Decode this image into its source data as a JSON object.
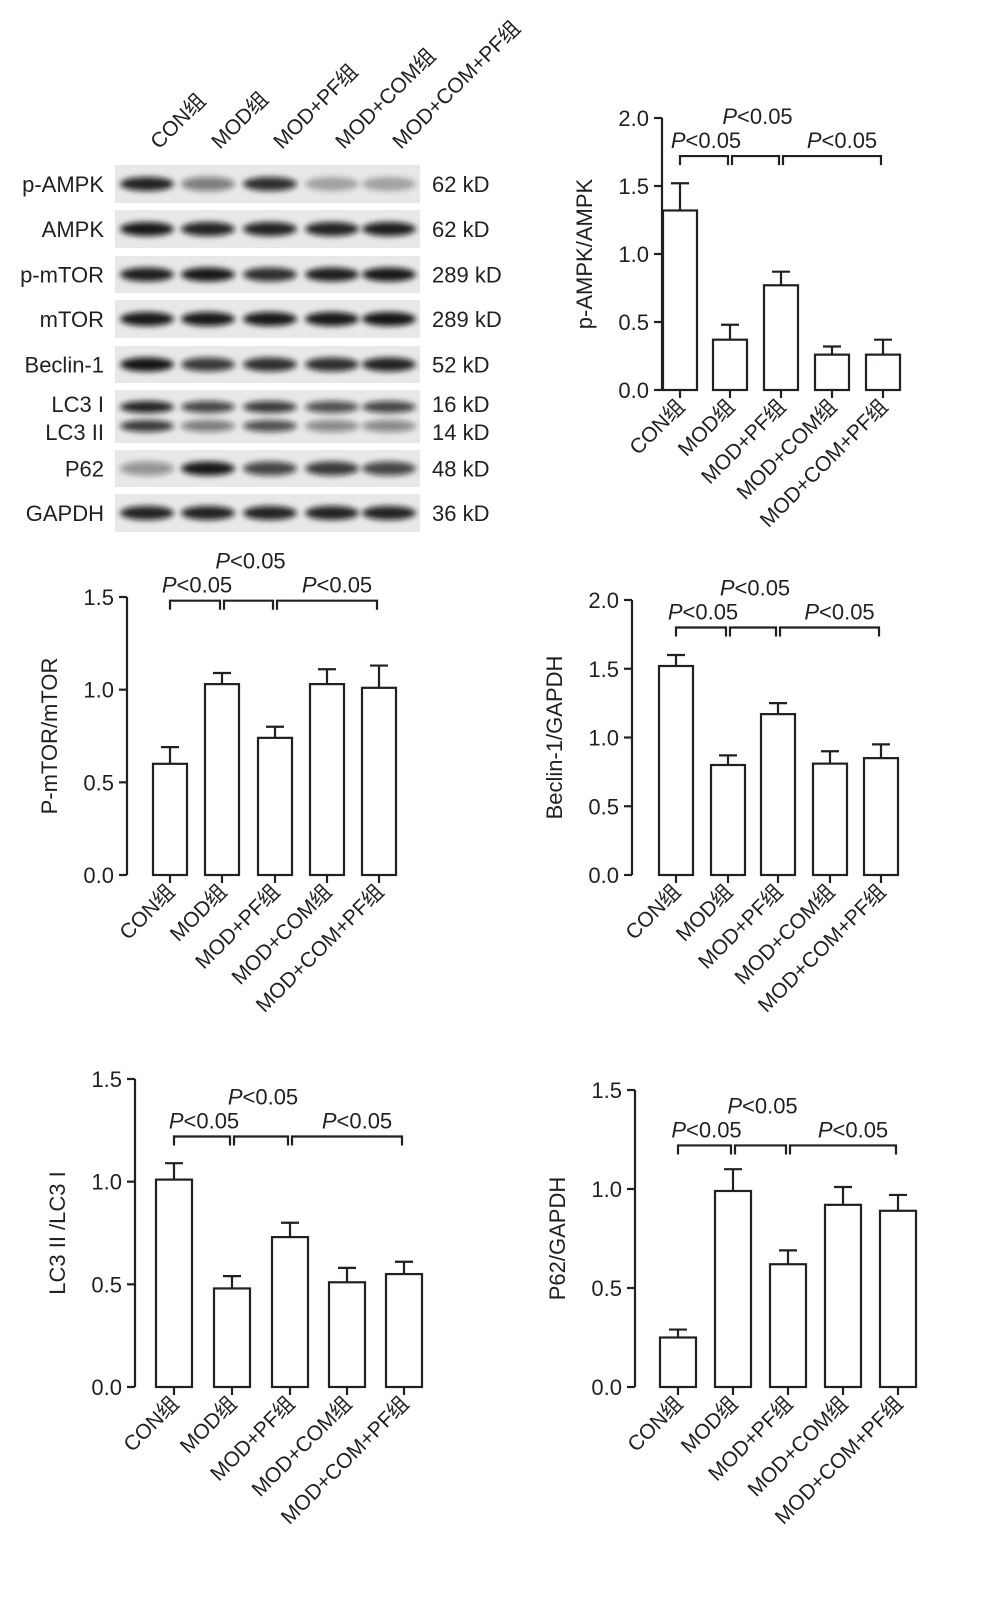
{
  "blot": {
    "lanes": [
      "CON组",
      "MOD组",
      "MOD+PF组",
      "MOD+COM组",
      "MOD+COM+PF组"
    ],
    "rows": [
      {
        "label": "p-AMPK",
        "kd": "62 kD"
      },
      {
        "label": "AMPK",
        "kd": "62 kD"
      },
      {
        "label": "p-mTOR",
        "kd": "289 kD"
      },
      {
        "label": "mTOR",
        "kd": "289 kD"
      },
      {
        "label": "Beclin-1",
        "kd": "52 kD"
      },
      {
        "label": "LC3 I",
        "kd": "16 kD"
      },
      {
        "label": "LC3 II",
        "kd": "14 kD"
      },
      {
        "label": "P62",
        "kd": "48 kD"
      },
      {
        "label": "GAPDH",
        "kd": "36 kD"
      }
    ]
  },
  "chart_data": [
    {
      "type": "bar",
      "ylabel": "p-AMPK/AMPK",
      "categories": [
        "CON组",
        "MOD组",
        "MOD+PF组",
        "MOD+COM组",
        "MOD+COM+PF组"
      ],
      "values": [
        1.32,
        0.37,
        0.77,
        0.26,
        0.26
      ],
      "errors": [
        0.2,
        0.11,
        0.1,
        0.06,
        0.11
      ],
      "ylim": [
        0,
        2.0
      ],
      "yticks": [
        "0.0",
        "0.5",
        "1.0",
        "1.5",
        "2.0"
      ],
      "significance": [
        "P<0.05",
        "P<0.05",
        "P<0.05"
      ]
    },
    {
      "type": "bar",
      "ylabel": "P-mTOR/mTOR",
      "categories": [
        "CON组",
        "MOD组",
        "MOD+PF组",
        "MOD+COM组",
        "MOD+COM+PF组"
      ],
      "values": [
        0.6,
        1.03,
        0.74,
        1.03,
        1.01
      ],
      "errors": [
        0.09,
        0.06,
        0.06,
        0.08,
        0.12
      ],
      "ylim": [
        0,
        1.5
      ],
      "yticks": [
        "0.0",
        "0.5",
        "1.0",
        "1.5"
      ],
      "significance": [
        "P<0.05",
        "P<0.05",
        "P<0.05"
      ]
    },
    {
      "type": "bar",
      "ylabel": "Beclin-1/GAPDH",
      "categories": [
        "CON组",
        "MOD组",
        "MOD+PF组",
        "MOD+COM组",
        "MOD+COM+PF组"
      ],
      "values": [
        1.52,
        0.8,
        1.17,
        0.81,
        0.85
      ],
      "errors": [
        0.08,
        0.07,
        0.08,
        0.09,
        0.1
      ],
      "ylim": [
        0,
        2.0
      ],
      "yticks": [
        "0.0",
        "0.5",
        "1.0",
        "1.5",
        "2.0"
      ],
      "significance": [
        "P<0.05",
        "P<0.05",
        "P<0.05"
      ]
    },
    {
      "type": "bar",
      "ylabel": "LC3 II /LC3 I",
      "categories": [
        "CON组",
        "MOD组",
        "MOD+PF组",
        "MOD+COM组",
        "MOD+COM+PF组"
      ],
      "values": [
        1.01,
        0.48,
        0.73,
        0.51,
        0.55
      ],
      "errors": [
        0.08,
        0.06,
        0.07,
        0.07,
        0.06
      ],
      "ylim": [
        0,
        1.5
      ],
      "yticks": [
        "0.0",
        "0.5",
        "1.0",
        "1.5"
      ],
      "significance": [
        "P<0.05",
        "P<0.05",
        "P<0.05"
      ]
    },
    {
      "type": "bar",
      "ylabel": "P62/GAPDH",
      "categories": [
        "CON组",
        "MOD组",
        "MOD+PF组",
        "MOD+COM组",
        "MOD+COM+PF组"
      ],
      "values": [
        0.25,
        0.99,
        0.62,
        0.92,
        0.89
      ],
      "errors": [
        0.04,
        0.11,
        0.07,
        0.09,
        0.08
      ],
      "ylim": [
        0,
        1.5
      ],
      "yticks": [
        "0.0",
        "0.5",
        "1.0",
        "1.5"
      ],
      "significance": [
        "P<0.05",
        "P<0.05",
        "P<0.05"
      ]
    }
  ]
}
